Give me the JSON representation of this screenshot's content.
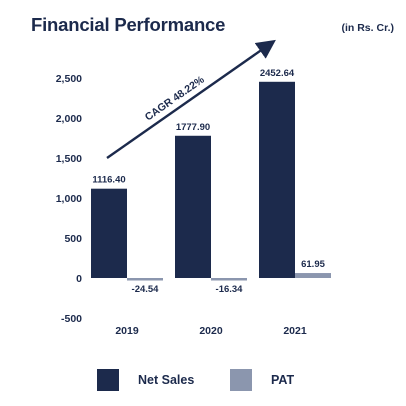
{
  "header": {
    "title": "Financial Performance",
    "unit_note": "(in Rs. Cr.)"
  },
  "chart_data": {
    "type": "bar",
    "categories": [
      "2019",
      "2020",
      "2021"
    ],
    "series": [
      {
        "name": "Net Sales",
        "color": "#1c2a4c",
        "values": [
          1116.4,
          1777.9,
          2452.64
        ],
        "labels": [
          "1116.40",
          "1777.90",
          "2452.64"
        ]
      },
      {
        "name": "PAT",
        "color": "#8b96ae",
        "values": [
          -24.54,
          -16.34,
          61.95
        ],
        "labels": [
          "-24.54",
          "-16.34",
          "61.95"
        ]
      }
    ],
    "yticks": [
      "2,500",
      "2,000",
      "1,500",
      "1,000",
      "500",
      "0",
      "-500"
    ],
    "ylim": [
      -500,
      2500
    ],
    "grid": false,
    "legend_position": "bottom",
    "annotation": {
      "text": "CAGR 48.22%",
      "type": "arrow"
    }
  }
}
